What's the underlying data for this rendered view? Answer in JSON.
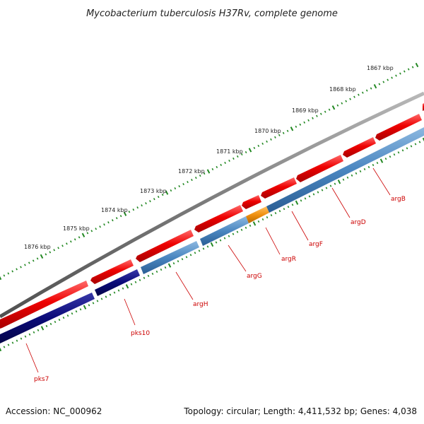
{
  "title": "Mycobacterium tuberculosis H37Rv, complete genome",
  "footer": {
    "accession": "Accession: NC_000962",
    "summary": "Topology: circular; Length: 4,411,532 bp; Genes: 4,038"
  },
  "colors": {
    "backbone": "#7a7a7a",
    "forward_strand": "#ee0000",
    "reverse_strand_light": "#4a86c0",
    "reverse_strand_dark": "#0a0a78",
    "highlight_gene": "#f09010",
    "tick": "#228822",
    "label": "#cc0000"
  },
  "ticks": [
    {
      "label": "1867 kbp"
    },
    {
      "label": "1868 kbp"
    },
    {
      "label": "1869 kbp"
    },
    {
      "label": "1870 kbp"
    },
    {
      "label": "1871 kbp"
    },
    {
      "label": "1872 kbp"
    },
    {
      "label": "1873 kbp"
    },
    {
      "label": "1874 kbp"
    },
    {
      "label": "1875 kbp"
    },
    {
      "label": "1876 kbp"
    }
  ],
  "genes": [
    {
      "name": "argB"
    },
    {
      "name": "argD"
    },
    {
      "name": "argF"
    },
    {
      "name": "argR"
    },
    {
      "name": "argG"
    },
    {
      "name": "argH"
    },
    {
      "name": "pks10"
    },
    {
      "name": "pks7"
    }
  ]
}
